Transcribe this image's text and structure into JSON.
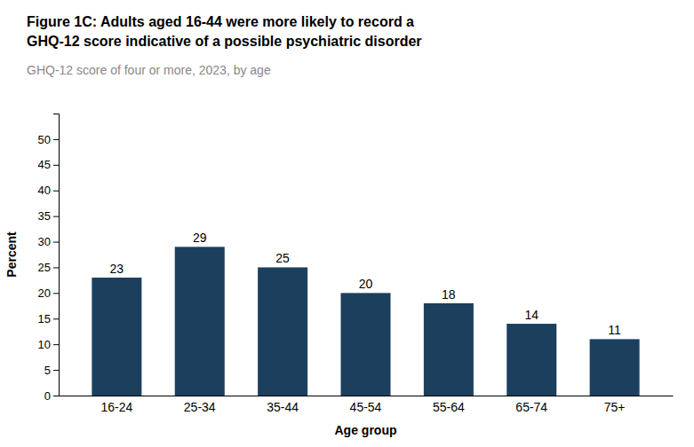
{
  "chart_data": {
    "type": "bar",
    "title": [
      "Figure 1C: Adults aged 16-44 were more likely to record a",
      "GHQ-12 score indicative of a possible psychiatric disorder"
    ],
    "subtitle": "GHQ-12 score of four or more, 2023, by age",
    "categories": [
      "16-24",
      "25-34",
      "35-44",
      "45-54",
      "55-64",
      "65-74",
      "75+"
    ],
    "values": [
      23,
      29,
      25,
      20,
      18,
      14,
      11
    ],
    "color": "#1c3f5e",
    "xlabel": "Age group",
    "ylabel": "Percent",
    "ylim": [
      0,
      55
    ],
    "yticks": [
      0,
      5,
      10,
      15,
      20,
      25,
      30,
      35,
      40,
      45,
      50
    ],
    "data_labels": true,
    "grid": false
  }
}
